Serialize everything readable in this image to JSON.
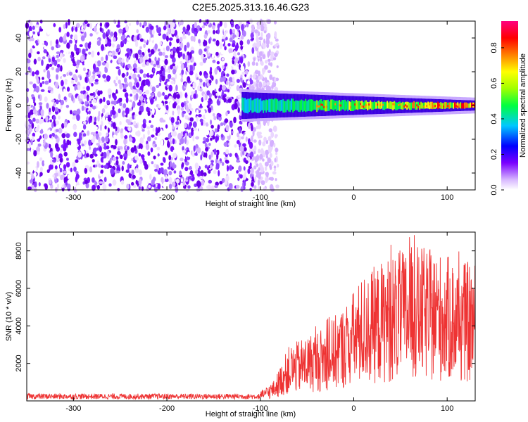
{
  "chart_data": [
    {
      "type": "heatmap",
      "title": "C2E5.2025.313.16.46.G23",
      "xlabel": "Height of straight line (km)",
      "ylabel": "Frequency (Hz)",
      "xlim": [
        -350,
        130
      ],
      "ylim": [
        -50,
        50
      ],
      "xticks": [
        -300,
        -200,
        -100,
        0,
        100
      ],
      "yticks": [
        -40,
        -20,
        0,
        20,
        40
      ],
      "colorbar": {
        "label": "Normalized spectral amplitude",
        "range": [
          0.0,
          0.95
        ],
        "ticks": [
          0.0,
          0.2,
          0.4,
          0.6,
          0.8
        ]
      },
      "noise_region_x": [
        -350,
        -100
      ],
      "signal_band": {
        "x_start": -120,
        "center_frequency": 0,
        "half_width_start": 8,
        "half_width_end": 3,
        "peak_amplitude": 0.9
      }
    },
    {
      "type": "line",
      "title": "",
      "xlabel": "Height of straight line (km)",
      "ylabel": "SNR (10 * v/v)",
      "xlim": [
        -350,
        130
      ],
      "ylim": [
        0,
        9000
      ],
      "xticks": [
        -300,
        -200,
        -100,
        0,
        100
      ],
      "yticks": [
        2000,
        4000,
        6000,
        8000
      ],
      "series_color": "#ee3333",
      "envelope": [
        {
          "x": -350,
          "y": 300
        },
        {
          "x": -100,
          "y": 300
        },
        {
          "x": -85,
          "y": 700
        },
        {
          "x": -70,
          "y": 1800
        },
        {
          "x": -50,
          "y": 2200
        },
        {
          "x": -30,
          "y": 2500
        },
        {
          "x": -10,
          "y": 3200
        },
        {
          "x": 10,
          "y": 4200
        },
        {
          "x": 40,
          "y": 4900
        },
        {
          "x": 65,
          "y": 5200
        },
        {
          "x": 90,
          "y": 5000
        },
        {
          "x": 110,
          "y": 4700
        },
        {
          "x": 130,
          "y": 4600
        }
      ]
    }
  ]
}
